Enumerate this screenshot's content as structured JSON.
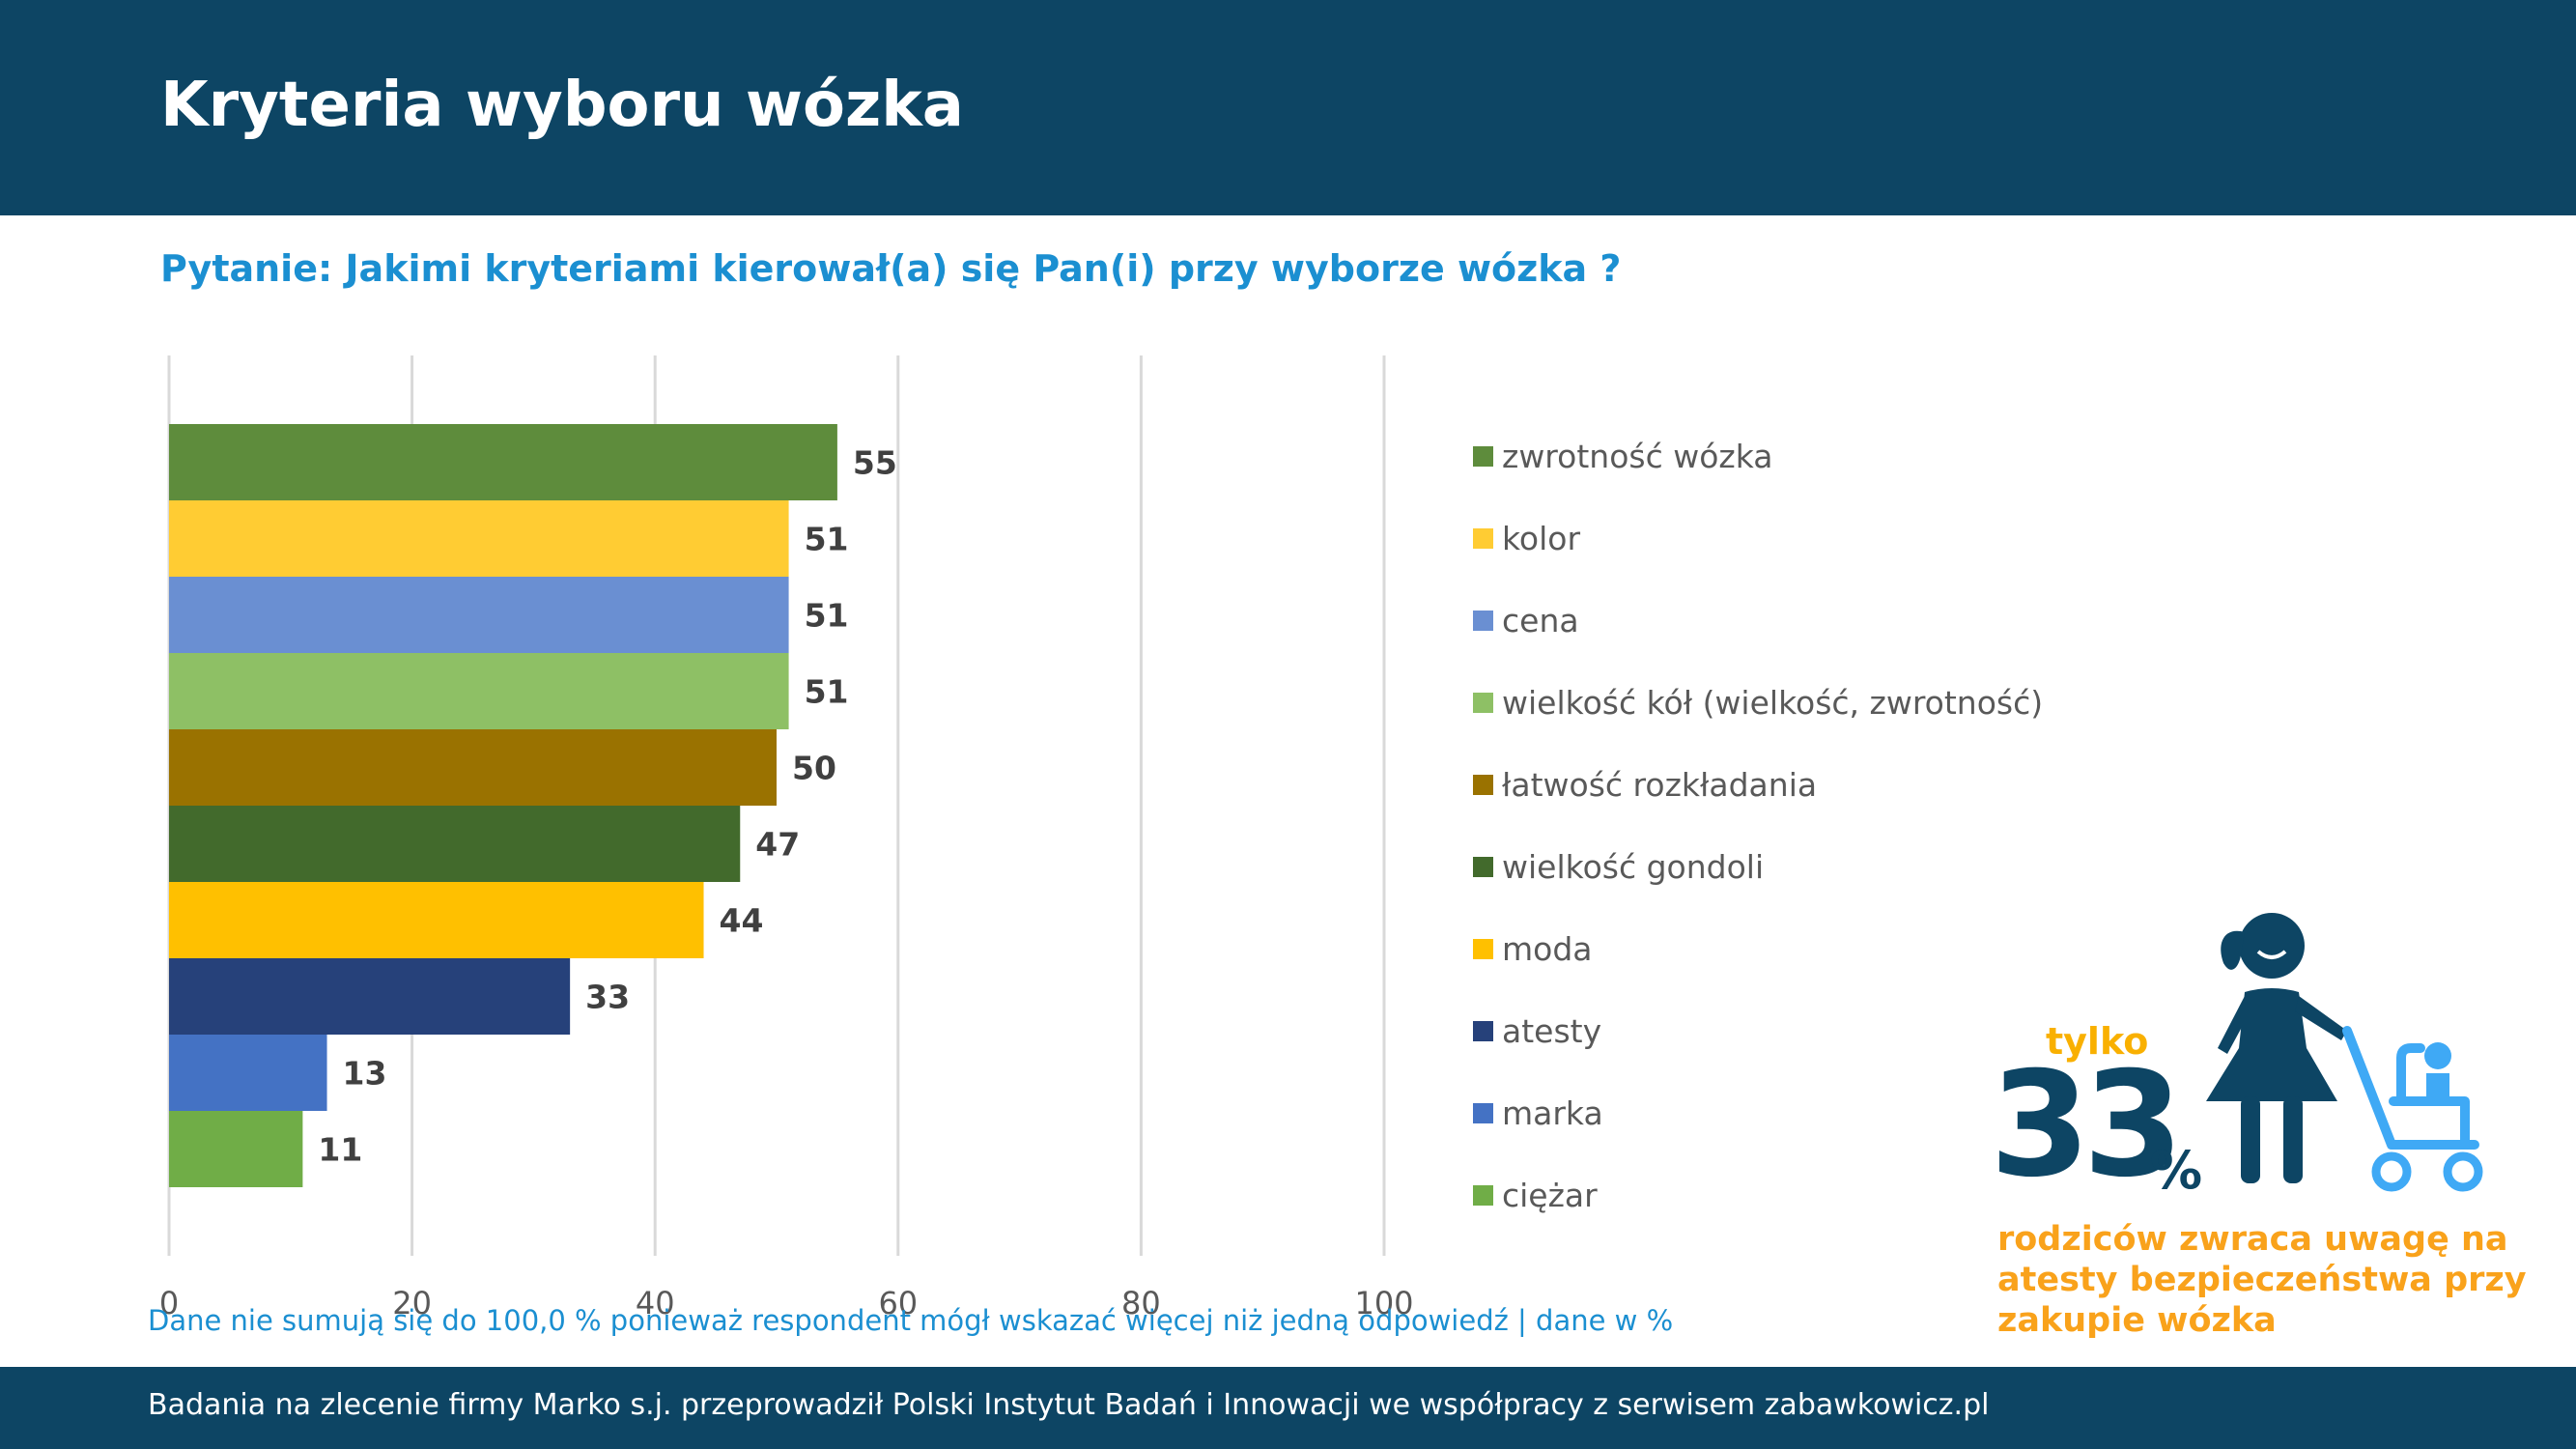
{
  "header": {
    "title": "Kryteria wyboru wózka"
  },
  "question": "Pytanie: Jakimi  kryteriami kierował(a) się Pan(i) przy wyborze wózka ?",
  "chart_data": {
    "type": "bar",
    "orientation": "horizontal",
    "categories": [
      "zwrotność wózka",
      "kolor",
      "cena",
      "wielkość kół (wielkość, zwrotność)",
      "łatwość rozkładania",
      "wielkość gondoli",
      "moda",
      "atesty",
      "marka",
      "ciężar"
    ],
    "values": [
      55,
      51,
      51,
      51,
      50,
      47,
      44,
      33,
      13,
      11
    ],
    "colors": [
      "#5e8c3c",
      "#ffcc33",
      "#6a8fd2",
      "#8ec065",
      "#9a7200",
      "#426a2c",
      "#ffc000",
      "#26417a",
      "#4472c4",
      "#70ad47"
    ],
    "xlim": [
      0,
      100
    ],
    "x_ticks": [
      0,
      20,
      40,
      60,
      80,
      100
    ],
    "grid": true,
    "legend_position": "right",
    "data_labels": true
  },
  "footnote": "Dane nie sumują się do 100,0 % ponieważ respondent mógł wskazać więcej niż jedną odpowiedź  |  dane w %",
  "footer": {
    "text": "Badania na zlecenie firmy Marko s.j. przeprowadził Polski Instytut Badań i Innowacji we współpracy z serwisem zabawkowicz.pl"
  },
  "infographic": {
    "prefix": "tylko",
    "number": "33",
    "percent": "%",
    "caption": "rodziców zwraca uwagę na atesty bezpieczeństwa przy zakupie wózka",
    "icon": "mother-with-stroller-icon",
    "colors": {
      "accent": "#f9b000",
      "dark": "#0d4564",
      "stroller": "#3fa9f5"
    }
  }
}
